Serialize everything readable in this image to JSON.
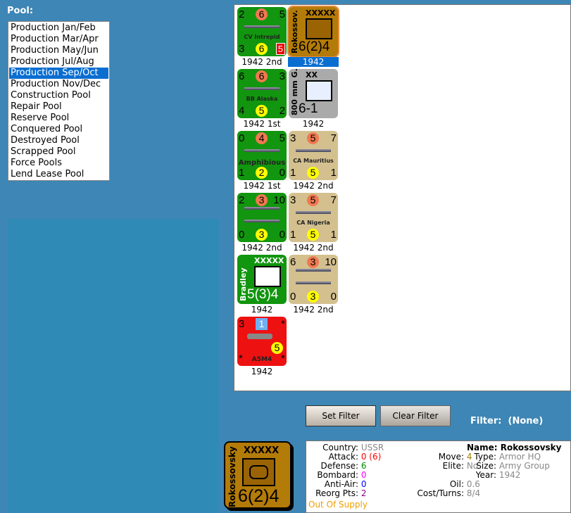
{
  "pool": {
    "label": "Pool:",
    "items": [
      "Production Jan/Feb",
      "Production Mar/Apr",
      "Production May/Jun",
      "Production Jul/Aug",
      "Production Sep/Oct",
      "Production Nov/Dec",
      "Construction Pool",
      "Repair Pool",
      "Reserve Pool",
      "Conquered Pool",
      "Destroyed Pool",
      "Scrapped Pool",
      "Force Pools",
      "Lend Lease Pool"
    ],
    "selected": "Production Sep/Oct"
  },
  "units": [
    {
      "kind": "ship",
      "color": "green",
      "tl": "2",
      "tc": "6",
      "tr": "5",
      "bl": "3",
      "bc": "6",
      "br": "5",
      "name": "CV Intrepid",
      "label": "1942 2nd"
    },
    {
      "kind": "hq",
      "color": "brown",
      "size": "XXXXX",
      "name": "Rokossov.",
      "stats": "6(2)4",
      "label": "1942",
      "selected": true
    },
    {
      "kind": "ship",
      "color": "green",
      "tl": "6",
      "tc": "6",
      "tr": "3",
      "bl": "4",
      "bc": "5",
      "br": "2",
      "name": "BB Alaska",
      "label": "1942 1st"
    },
    {
      "kind": "art",
      "color": "gray",
      "size": "XX",
      "name": "800 mm G.",
      "stats": "6-1",
      "label": "1942"
    },
    {
      "kind": "ship",
      "color": "green",
      "tl": "0",
      "tc": "4",
      "tr": "5",
      "bl": "1",
      "bc": "2",
      "br": "0",
      "name": "Amphibious",
      "label": "1942 1st"
    },
    {
      "kind": "ship",
      "color": "tan",
      "tl": "3",
      "tc": "5",
      "tr": "7",
      "bl": "1",
      "bc": "5",
      "br": "1",
      "name": "CA Mauritius",
      "label": "1942 2nd"
    },
    {
      "kind": "ship",
      "color": "green",
      "tl": "2",
      "tc": "3",
      "tr": "10",
      "bl": "0",
      "bc": "3",
      "br": "0",
      "name": "",
      "label": "1942 2nd"
    },
    {
      "kind": "ship",
      "color": "tan",
      "tl": "3",
      "tc": "5",
      "tr": "7",
      "bl": "1",
      "bc": "5",
      "br": "1",
      "name": "CA Nigeria",
      "label": "1942 2nd"
    },
    {
      "kind": "hq",
      "color": "green",
      "size": "XXXXX",
      "name": "Bradley",
      "stats": "5(3)4",
      "label": "1942"
    },
    {
      "kind": "ship",
      "color": "tan",
      "tl": "6",
      "tc": "3",
      "tr": "10",
      "bl": "0",
      "bc": "3",
      "br": "0",
      "name": "",
      "label": "1942 2nd"
    },
    {
      "kind": "air",
      "color": "red",
      "tl": "3",
      "tc": "1",
      "tr": "*",
      "bl": "*",
      "bc": "5",
      "br": "*",
      "name": "A5M4",
      "label": "1942"
    }
  ],
  "buttons": {
    "set_filter": "Set Filter",
    "clear_filter": "Clear Filter"
  },
  "filter": {
    "label": "Filter:",
    "value": "(None)"
  },
  "detail": {
    "counter": {
      "size": "XXXXX",
      "name": "Rokossovsky",
      "stats": "6(2)4"
    },
    "country_k": "Country:",
    "country": "USSR",
    "attack_k": "Attack:",
    "attack": "0 (6)",
    "defense_k": "Defense:",
    "defense": "6",
    "bombard_k": "Bombard:",
    "bombard": "0",
    "antiair_k": "Anti-Air:",
    "antiair": "0",
    "reorg_k": "Reorg Pts:",
    "reorg": "2",
    "supply": "Out Of Supply",
    "move_k": "Move:",
    "move": "4",
    "elite_k": "Elite:",
    "elite": "No",
    "oil_k": "Oil:",
    "oil": "0.6",
    "cost_k": "Cost/Turns:",
    "cost": "8/4",
    "name_k": "Name:",
    "name": "Rokossovsky",
    "type_k": "Type:",
    "type": "Armor HQ",
    "size_k": "Size:",
    "size": "Army Group",
    "year_k": "Year:",
    "year": "1942"
  },
  "colors": {
    "attack": "#ff0000",
    "defense": "#008000",
    "bombard": "#ff00ff",
    "antiair": "#0000ff",
    "reorg": "#800080",
    "supply": "#f0a000",
    "move": "#a08000"
  }
}
